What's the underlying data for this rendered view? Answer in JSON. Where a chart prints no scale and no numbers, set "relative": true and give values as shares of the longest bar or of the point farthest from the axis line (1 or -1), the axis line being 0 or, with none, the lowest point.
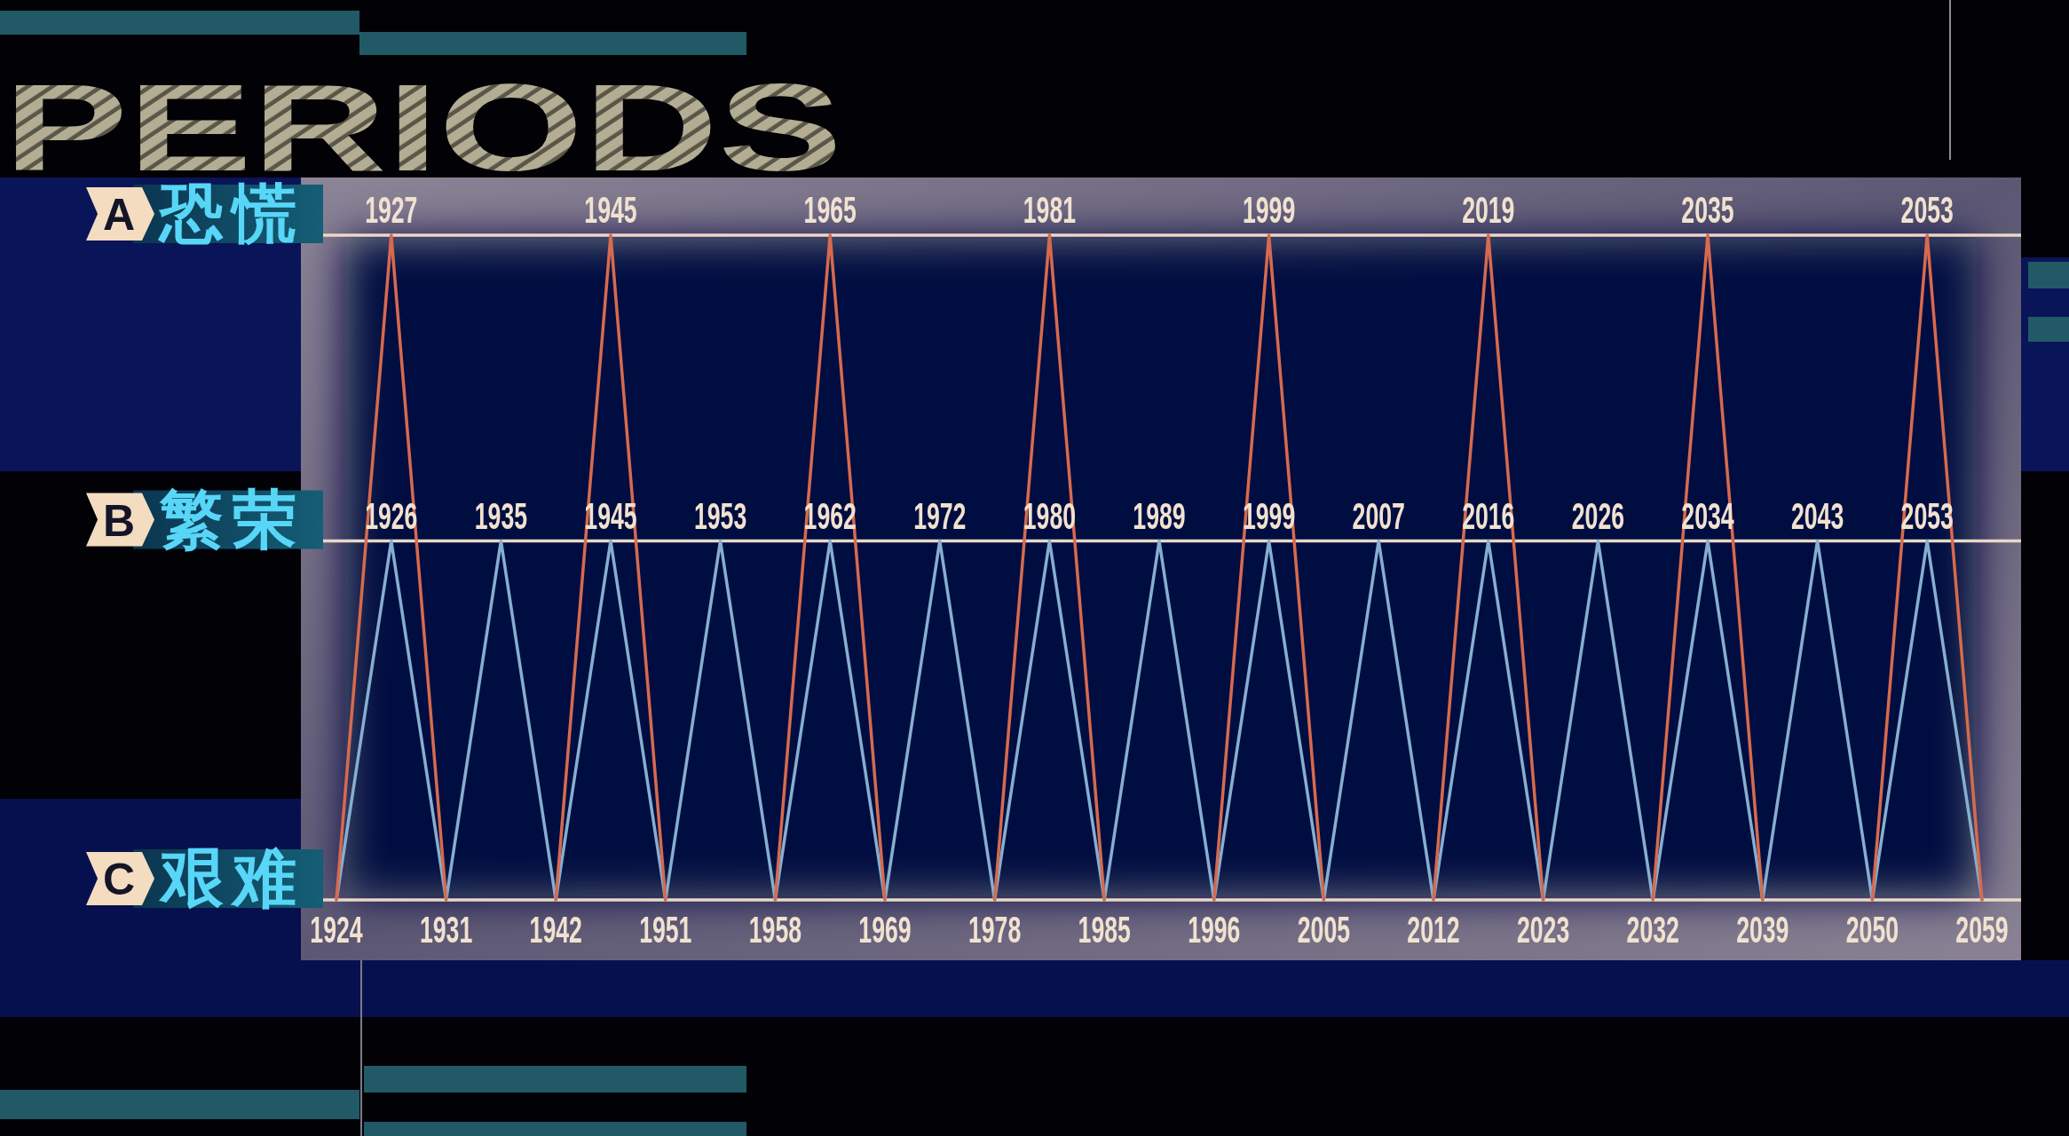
{
  "chart_data": {
    "type": "line",
    "relative": true,
    "categories": [
      "1924",
      "1926",
      "1931",
      "1935",
      "1942",
      "1945",
      "1951",
      "1953",
      "1958",
      "1962",
      "1969",
      "1972",
      "1978",
      "1980",
      "1985",
      "1989",
      "1996",
      "1999",
      "2005",
      "2007",
      "2012",
      "2016",
      "2023",
      "2026",
      "2032",
      "2034",
      "2039",
      "2043",
      "2050",
      "2053",
      "2059"
    ],
    "series": [
      {
        "color": "#86aed0",
        "values": [
          0,
          0.54,
          0,
          0.54,
          0,
          0.54,
          0,
          0.54,
          0,
          0.54,
          0,
          0.54,
          0,
          0.54,
          0,
          0.54,
          0,
          0.54,
          0,
          0.54,
          0,
          0.54,
          0,
          0.54,
          0,
          0.54,
          0,
          0.54,
          0,
          0.54,
          0
        ]
      },
      {
        "color": "#d66a4e",
        "values": [
          0,
          1,
          0,
          null,
          0,
          1,
          0,
          null,
          0,
          1,
          0,
          null,
          0,
          1,
          0,
          null,
          0,
          1,
          0,
          null,
          0,
          1,
          0,
          null,
          0,
          1,
          0,
          null,
          0,
          1,
          0
        ]
      }
    ],
    "ref_lines": [
      {
        "axis": "y",
        "value": 1,
        "label": "A 恐慌",
        "color": "#ead8c6"
      },
      {
        "axis": "y",
        "value": 0.54,
        "label": "B 繁荣",
        "color": "#ead8c6"
      }
    ],
    "annotations": [
      "PERIODS",
      "C 艰难",
      {
        "text": "1927",
        "x": "1926",
        "y": 1
      },
      {
        "text": "1945",
        "x": "1945",
        "y": 1
      },
      {
        "text": "1965",
        "x": "1962",
        "y": 1
      },
      {
        "text": "1981",
        "x": "1980",
        "y": 1
      },
      {
        "text": "1999",
        "x": "1999",
        "y": 1
      },
      {
        "text": "2019",
        "x": "2016",
        "y": 1
      },
      {
        "text": "2035",
        "x": "2034",
        "y": 1
      },
      {
        "text": "2053",
        "x": "2053",
        "y": 1
      }
    ]
  }
}
